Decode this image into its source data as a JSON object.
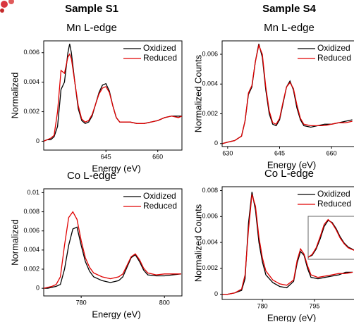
{
  "chart_data": [
    {
      "type": "line",
      "column_title": "Sample S1",
      "title": "Mn L-edge",
      "xlabel": "Energy (eV)",
      "ylabel": "Normalized",
      "legend": "upper right",
      "x": [
        627,
        628,
        629,
        630,
        631,
        632,
        633,
        634,
        634.5,
        635,
        636,
        637,
        638,
        639,
        640,
        641,
        642,
        643,
        644,
        645,
        646,
        647,
        648,
        649,
        650,
        652,
        654,
        656,
        658,
        660,
        662,
        664,
        666,
        667
      ],
      "series": [
        {
          "name": "Oxidized",
          "color": "#000000",
          "values": [
            0.0,
            0.0001,
            0.0001,
            0.0003,
            0.001,
            0.0035,
            0.004,
            0.006,
            0.0066,
            0.006,
            0.004,
            0.0022,
            0.0014,
            0.0012,
            0.0013,
            0.0017,
            0.0025,
            0.0033,
            0.0038,
            0.0039,
            0.0034,
            0.0024,
            0.0016,
            0.0013,
            0.0013,
            0.0013,
            0.0012,
            0.0012,
            0.0013,
            0.0014,
            0.0016,
            0.0017,
            0.0017,
            0.0017
          ]
        },
        {
          "name": "Reduced",
          "color": "#e00000",
          "values": [
            0.0,
            0.0001,
            0.0002,
            0.0004,
            0.002,
            0.0048,
            0.0046,
            0.0057,
            0.0059,
            0.0056,
            0.004,
            0.0024,
            0.0015,
            0.0013,
            0.0014,
            0.0018,
            0.0025,
            0.0032,
            0.0036,
            0.0037,
            0.0033,
            0.0024,
            0.0016,
            0.0013,
            0.0013,
            0.0013,
            0.0012,
            0.0012,
            0.0013,
            0.0014,
            0.0016,
            0.0017,
            0.0016,
            0.0017
          ]
        }
      ],
      "xlim": [
        627,
        667
      ],
      "xticks": [
        645,
        660
      ],
      "ylim": [
        -0.0006,
        0.0068
      ],
      "yticks": [
        0,
        0.002,
        0.004,
        0.006
      ]
    },
    {
      "type": "line",
      "column_title": "Sample S4",
      "title": "Mn L-edge",
      "xlabel": "Energy (eV)",
      "ylabel": "Normalized Counts",
      "legend": "upper right",
      "x": [
        628.5,
        630,
        632,
        634,
        635,
        636,
        637,
        638,
        639,
        640,
        641,
        642,
        643,
        644,
        645,
        646,
        647,
        648,
        649,
        650,
        651,
        652,
        654,
        656,
        658,
        660,
        662,
        664,
        666
      ],
      "series": [
        {
          "name": "Oxidized",
          "color": "#000000",
          "values": [
            0.0,
            0.0001,
            0.0002,
            0.0005,
            0.0015,
            0.0033,
            0.0038,
            0.0055,
            0.0067,
            0.0058,
            0.0036,
            0.002,
            0.0013,
            0.0012,
            0.0016,
            0.0027,
            0.0038,
            0.0042,
            0.0036,
            0.0024,
            0.0016,
            0.0012,
            0.0011,
            0.0012,
            0.0013,
            0.0013,
            0.0014,
            0.0015,
            0.0016
          ]
        },
        {
          "name": "Reduced",
          "color": "#e00000",
          "values": [
            0.0,
            0.0001,
            0.0002,
            0.0005,
            0.0015,
            0.0034,
            0.0039,
            0.0055,
            0.0066,
            0.006,
            0.0038,
            0.0022,
            0.0014,
            0.0013,
            0.0017,
            0.0028,
            0.0038,
            0.0041,
            0.0037,
            0.0026,
            0.0017,
            0.0013,
            0.0012,
            0.0012,
            0.0012,
            0.0013,
            0.0014,
            0.0014,
            0.0015
          ]
        }
      ],
      "xlim": [
        628.4,
        667.1
      ],
      "xticks": [
        630,
        645,
        660
      ],
      "ylim": [
        -0.0002,
        0.0069
      ],
      "yticks": [
        0,
        0.002,
        0.004,
        0.006
      ]
    },
    {
      "type": "line",
      "title": "Co L-edge",
      "xlabel": "Energy (eV)",
      "ylabel": "Normalized",
      "legend": "upper right",
      "x": [
        771,
        772,
        773,
        774,
        775,
        776,
        777,
        778,
        779,
        780,
        781,
        782,
        783,
        785,
        787,
        789,
        790,
        791,
        792,
        793,
        794,
        795,
        796,
        798,
        800,
        802,
        804
      ],
      "series": [
        {
          "name": "Oxidized",
          "color": "#000000",
          "values": [
            0.0,
            0.0,
            0.0001,
            0.0002,
            0.0004,
            0.002,
            0.0045,
            0.0062,
            0.0064,
            0.0045,
            0.0028,
            0.0018,
            0.0012,
            0.0008,
            0.0006,
            0.0008,
            0.0012,
            0.0022,
            0.0032,
            0.0035,
            0.0028,
            0.0019,
            0.0014,
            0.0013,
            0.0013,
            0.0014,
            0.0015
          ]
        },
        {
          "name": "Reduced",
          "color": "#e00000",
          "values": [
            0.0,
            0.0001,
            0.0002,
            0.0004,
            0.0012,
            0.0045,
            0.0074,
            0.008,
            0.0072,
            0.005,
            0.0032,
            0.0022,
            0.0016,
            0.0012,
            0.001,
            0.0012,
            0.0015,
            0.0024,
            0.0033,
            0.0036,
            0.003,
            0.0021,
            0.0016,
            0.0014,
            0.0015,
            0.0015,
            0.0015
          ]
        }
      ],
      "xlim": [
        771,
        804.2
      ],
      "xticks": [
        780,
        800
      ],
      "ylim": [
        -0.0008,
        0.0104
      ],
      "yticks": [
        0,
        0.002,
        0.004,
        0.006,
        0.008,
        0.01
      ]
    },
    {
      "type": "line",
      "title": "Co L-edge",
      "xlabel": "Energy (eV)",
      "ylabel": "Normalized Counts",
      "legend": "upper right",
      "x": [
        768.5,
        770,
        772,
        774,
        775,
        776,
        777,
        778,
        779,
        780,
        781,
        783,
        785,
        787,
        789,
        790,
        791,
        792,
        793,
        794,
        796,
        798,
        800,
        802,
        804,
        806
      ],
      "series": [
        {
          "name": "Oxidized",
          "color": "#000000",
          "values": [
            0.0,
            0.0,
            0.0001,
            0.0003,
            0.0012,
            0.0055,
            0.0079,
            0.0065,
            0.004,
            0.0025,
            0.0015,
            0.0009,
            0.0006,
            0.0005,
            0.001,
            0.0024,
            0.0033,
            0.003,
            0.002,
            0.0013,
            0.0012,
            0.0013,
            0.0014,
            0.0015,
            0.0017,
            0.0017
          ]
        },
        {
          "name": "Reduced",
          "color": "#e00000",
          "values": [
            0.0,
            0.0,
            0.0001,
            0.0004,
            0.0015,
            0.005,
            0.0077,
            0.0068,
            0.0044,
            0.0028,
            0.0018,
            0.0011,
            0.0008,
            0.0007,
            0.0011,
            0.0026,
            0.0035,
            0.0031,
            0.0022,
            0.0015,
            0.0013,
            0.0014,
            0.0015,
            0.0016,
            0.0016,
            0.0017
          ]
        }
      ],
      "xlim": [
        768.4,
        807
      ],
      "xticks": [
        780,
        795
      ],
      "ylim": [
        -0.0004,
        0.0083
      ],
      "yticks": [
        0,
        0.002,
        0.004,
        0.006,
        0.008
      ]
    },
    {
      "type": "line",
      "x": [
        0,
        1,
        2,
        3,
        4,
        5,
        6,
        7,
        8,
        9,
        10,
        11,
        12
      ],
      "series": [
        {
          "color": "#000000",
          "values": [
            0.05,
            0.1,
            0.25,
            0.5,
            0.8,
            0.95,
            0.9,
            0.75,
            0.55,
            0.4,
            0.3,
            0.25,
            0.2
          ]
        },
        {
          "color": "#e00000",
          "values": [
            0.05,
            0.12,
            0.28,
            0.55,
            0.85,
            0.97,
            0.88,
            0.72,
            0.52,
            0.38,
            0.28,
            0.24,
            0.2
          ]
        }
      ],
      "xlim": [
        0,
        12
      ],
      "ylim": [
        0,
        1.05
      ]
    }
  ]
}
